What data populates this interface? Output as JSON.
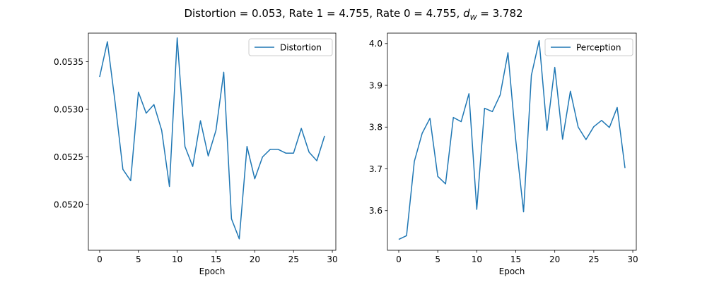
{
  "figure": {
    "suptitle_main": "Distortion = 0.053, Rate 1 = 4.755, Rate 0 = 4.755, ",
    "suptitle_dw_symbol": "d",
    "suptitle_dw_subscript": "W",
    "suptitle_dw_value": " = 3.782"
  },
  "colors": {
    "series": "#1f77b4",
    "axes": "#000000",
    "legend_border": "#cccccc"
  },
  "chart_data": [
    {
      "type": "line",
      "title": "",
      "xlabel": "Epoch",
      "ylabel": "",
      "xlim": [
        -1.45,
        30.45
      ],
      "ylim": [
        0.05152,
        0.0538
      ],
      "xticks": [
        0,
        5,
        10,
        15,
        20,
        25,
        30
      ],
      "xtick_labels": [
        "0",
        "5",
        "10",
        "15",
        "20",
        "25",
        "30"
      ],
      "yticks": [
        0.052,
        0.0525,
        0.053,
        0.0535
      ],
      "ytick_labels": [
        "0.0520",
        "0.0525",
        "0.0530",
        "0.0535"
      ],
      "legend": {
        "placement": "top-right",
        "entries": [
          "Distortion"
        ]
      },
      "grid": false,
      "series": [
        {
          "name": "Distortion",
          "x": [
            0,
            1,
            2,
            3,
            4,
            5,
            6,
            7,
            8,
            9,
            10,
            11,
            12,
            13,
            14,
            15,
            16,
            17,
            18,
            19,
            20,
            21,
            22,
            23,
            24,
            25,
            26,
            27,
            28,
            29
          ],
          "y": [
            0.05334,
            0.05371,
            0.05307,
            0.05237,
            0.05225,
            0.05318,
            0.05296,
            0.05305,
            0.05278,
            0.05219,
            0.05375,
            0.05261,
            0.0524,
            0.05288,
            0.05251,
            0.05278,
            0.05339,
            0.05185,
            0.05164,
            0.05261,
            0.05227,
            0.0525,
            0.05258,
            0.05258,
            0.05254,
            0.05254,
            0.0528,
            0.05255,
            0.05246,
            0.05272
          ]
        }
      ]
    },
    {
      "type": "line",
      "title": "",
      "xlabel": "Epoch",
      "ylabel": "",
      "xlim": [
        -1.45,
        30.45
      ],
      "ylim": [
        3.505,
        4.025
      ],
      "xticks": [
        0,
        5,
        10,
        15,
        20,
        25,
        30
      ],
      "xtick_labels": [
        "0",
        "5",
        "10",
        "15",
        "20",
        "25",
        "30"
      ],
      "yticks": [
        3.6,
        3.7,
        3.8,
        3.9,
        4.0
      ],
      "ytick_labels": [
        "3.6",
        "3.7",
        "3.8",
        "3.9",
        "4.0"
      ],
      "legend": {
        "placement": "top-right",
        "entries": [
          "Perception"
        ]
      },
      "grid": false,
      "series": [
        {
          "name": "Perception",
          "x": [
            0,
            1,
            2,
            3,
            4,
            5,
            6,
            7,
            8,
            9,
            10,
            11,
            12,
            13,
            14,
            15,
            16,
            17,
            18,
            19,
            20,
            21,
            22,
            23,
            24,
            25,
            26,
            27,
            28,
            29
          ],
          "y": [
            3.531,
            3.54,
            3.718,
            3.785,
            3.821,
            3.682,
            3.664,
            3.823,
            3.813,
            3.88,
            3.603,
            3.845,
            3.837,
            3.877,
            3.978,
            3.768,
            3.597,
            3.924,
            4.007,
            3.792,
            3.943,
            3.771,
            3.886,
            3.8,
            3.77,
            3.801,
            3.816,
            3.799,
            3.847,
            3.702
          ]
        }
      ]
    }
  ]
}
